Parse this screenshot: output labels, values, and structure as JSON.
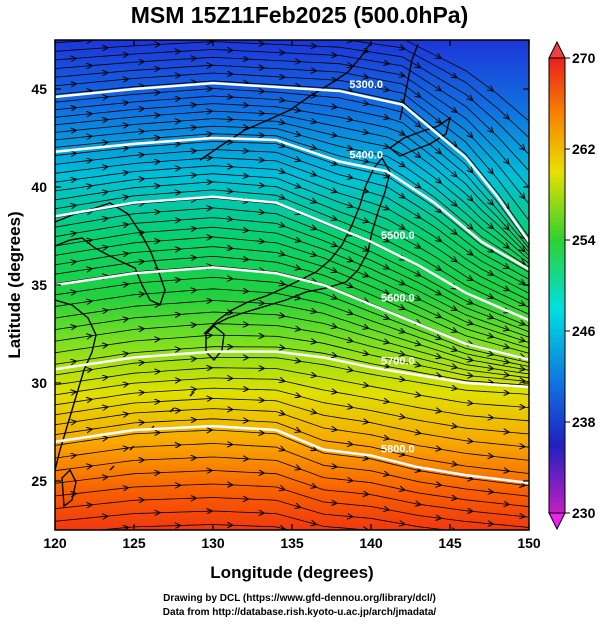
{
  "title": "MSM 15Z11Feb2025 (500.0hPa)",
  "x_axis": {
    "label": "Longitude (degrees)",
    "ticks": [
      "120",
      "125",
      "130",
      "135",
      "140",
      "145",
      "150"
    ],
    "range": [
      120,
      150
    ]
  },
  "y_axis": {
    "label": "Latitude  (degrees)",
    "ticks": [
      "25",
      "30",
      "35",
      "40",
      "45"
    ],
    "range": [
      22.5,
      47.5
    ]
  },
  "colorbar": {
    "ticks": [
      "270",
      "262",
      "254",
      "246",
      "238",
      "230"
    ],
    "range": [
      230,
      270
    ]
  },
  "contours": [
    {
      "label": "5300.0",
      "points": [
        [
          120,
          44.6
        ],
        [
          125,
          45.0
        ],
        [
          130,
          45.3
        ],
        [
          134,
          45.1
        ],
        [
          138,
          44.9
        ],
        [
          142,
          44.2
        ],
        [
          146,
          41.5
        ],
        [
          148,
          39.5
        ],
        [
          150,
          37.2
        ]
      ]
    },
    {
      "label": "5400.0",
      "points": [
        [
          120,
          41.8
        ],
        [
          125,
          42.2
        ],
        [
          130,
          42.5
        ],
        [
          134,
          42.4
        ],
        [
          138,
          41.3
        ],
        [
          141,
          40.8
        ],
        [
          144,
          39.2
        ],
        [
          147,
          37.2
        ],
        [
          150,
          35.8
        ]
      ]
    },
    {
      "label": "5500.0",
      "points": [
        [
          120,
          38.5
        ],
        [
          125,
          39.2
        ],
        [
          130,
          39.5
        ],
        [
          134,
          39.2
        ],
        [
          137,
          38.2
        ],
        [
          140,
          37.2
        ],
        [
          143,
          36.0
        ],
        [
          146,
          34.6
        ],
        [
          150,
          33.2
        ]
      ]
    },
    {
      "label": "5600.0",
      "points": [
        [
          120,
          35.0
        ],
        [
          125,
          35.6
        ],
        [
          130,
          35.9
        ],
        [
          134,
          35.6
        ],
        [
          137,
          35.0
        ],
        [
          140,
          34.0
        ],
        [
          143,
          33.0
        ],
        [
          146,
          32.0
        ],
        [
          150,
          31.2
        ]
      ]
    },
    {
      "label": "5700.0",
      "points": [
        [
          120,
          30.7
        ],
        [
          125,
          31.3
        ],
        [
          130,
          31.6
        ],
        [
          134,
          31.6
        ],
        [
          137,
          31.3
        ],
        [
          140,
          30.8
        ],
        [
          143,
          30.4
        ],
        [
          146,
          30.0
        ],
        [
          150,
          29.8
        ]
      ]
    },
    {
      "label": "5800.0",
      "points": [
        [
          120,
          27.0
        ],
        [
          125,
          27.6
        ],
        [
          130,
          27.8
        ],
        [
          134,
          27.6
        ],
        [
          137,
          26.6
        ],
        [
          140,
          26.3
        ],
        [
          143,
          25.7
        ],
        [
          146,
          25.3
        ],
        [
          150,
          24.9
        ]
      ]
    }
  ],
  "credits": [
    "Drawing by DCL (https://www.gfd-dennou.org/library/dcl/)",
    "Data from http://database.rish.kyoto-u.ac.jp/arch/jmadata/"
  ]
}
